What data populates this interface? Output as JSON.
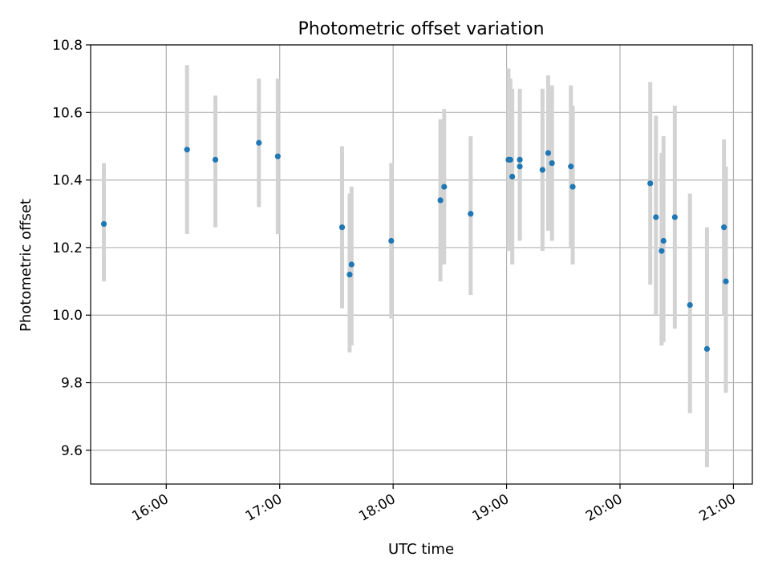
{
  "chart_data": {
    "type": "scatter",
    "title": "Photometric offset variation",
    "xlabel": "UTC time",
    "ylabel": "Photometric offset",
    "xlim": [
      "15:20",
      "21:10"
    ],
    "ylim": [
      9.5,
      10.8
    ],
    "x_ticks": [
      "16:00",
      "17:00",
      "18:00",
      "19:00",
      "20:00",
      "21:00"
    ],
    "y_ticks": [
      "9.6",
      "9.8",
      "10.0",
      "10.2",
      "10.4",
      "10.6",
      "10.8"
    ],
    "grid": true,
    "error_bars": true,
    "colors": {
      "points": "#1f77b4",
      "error_bars": "#d3d3d3",
      "grid": "#b0b0b0"
    },
    "points": [
      {
        "t": "15:27",
        "y": 10.27,
        "lo": 10.1,
        "hi": 10.45
      },
      {
        "t": "16:11",
        "y": 10.49,
        "lo": 10.24,
        "hi": 10.74
      },
      {
        "t": "16:26",
        "y": 10.46,
        "lo": 10.26,
        "hi": 10.65
      },
      {
        "t": "16:49",
        "y": 10.51,
        "lo": 10.32,
        "hi": 10.7
      },
      {
        "t": "16:59",
        "y": 10.47,
        "lo": 10.24,
        "hi": 10.7
      },
      {
        "t": "17:33",
        "y": 10.26,
        "lo": 10.02,
        "hi": 10.5
      },
      {
        "t": "17:37",
        "y": 10.12,
        "lo": 9.89,
        "hi": 10.36
      },
      {
        "t": "17:38",
        "y": 10.15,
        "lo": 9.91,
        "hi": 10.38
      },
      {
        "t": "17:59",
        "y": 10.22,
        "lo": 9.99,
        "hi": 10.45
      },
      {
        "t": "18:25",
        "y": 10.34,
        "lo": 10.1,
        "hi": 10.58
      },
      {
        "t": "18:27",
        "y": 10.38,
        "lo": 10.15,
        "hi": 10.61
      },
      {
        "t": "18:41",
        "y": 10.3,
        "lo": 10.06,
        "hi": 10.53
      },
      {
        "t": "19:01",
        "y": 10.46,
        "lo": 10.19,
        "hi": 10.73
      },
      {
        "t": "19:02",
        "y": 10.46,
        "lo": 10.21,
        "hi": 10.7
      },
      {
        "t": "19:03",
        "y": 10.41,
        "lo": 10.15,
        "hi": 10.67
      },
      {
        "t": "19:07",
        "y": 10.46,
        "lo": 10.24,
        "hi": 10.67
      },
      {
        "t": "19:07",
        "y": 10.44,
        "lo": 10.22,
        "hi": 10.66
      },
      {
        "t": "19:19",
        "y": 10.43,
        "lo": 10.19,
        "hi": 10.67
      },
      {
        "t": "19:22",
        "y": 10.48,
        "lo": 10.25,
        "hi": 10.71
      },
      {
        "t": "19:24",
        "y": 10.45,
        "lo": 10.22,
        "hi": 10.68
      },
      {
        "t": "19:34",
        "y": 10.44,
        "lo": 10.2,
        "hi": 10.68
      },
      {
        "t": "19:35",
        "y": 10.38,
        "lo": 10.15,
        "hi": 10.62
      },
      {
        "t": "20:16",
        "y": 10.39,
        "lo": 10.09,
        "hi": 10.69
      },
      {
        "t": "20:19",
        "y": 10.29,
        "lo": 10.0,
        "hi": 10.59
      },
      {
        "t": "20:22",
        "y": 10.19,
        "lo": 9.91,
        "hi": 10.48
      },
      {
        "t": "20:23",
        "y": 10.22,
        "lo": 9.92,
        "hi": 10.53
      },
      {
        "t": "20:29",
        "y": 10.29,
        "lo": 9.96,
        "hi": 10.62
      },
      {
        "t": "20:37",
        "y": 10.03,
        "lo": 9.71,
        "hi": 10.36
      },
      {
        "t": "20:46",
        "y": 9.9,
        "lo": 9.55,
        "hi": 10.26
      },
      {
        "t": "20:55",
        "y": 10.26,
        "lo": 10.0,
        "hi": 10.52
      },
      {
        "t": "20:56",
        "y": 10.1,
        "lo": 9.77,
        "hi": 10.44
      }
    ]
  }
}
